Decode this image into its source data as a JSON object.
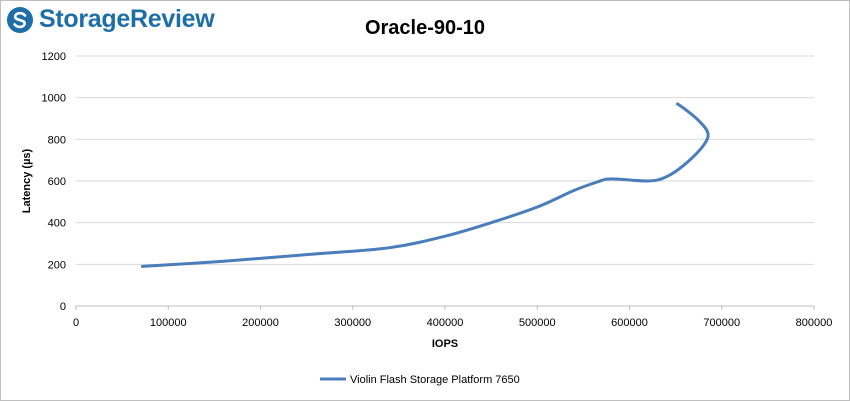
{
  "brand": {
    "name": "StorageReview",
    "color": "#1e6fa8"
  },
  "chart_data": {
    "type": "line",
    "title": "Oracle-90-10",
    "xlabel": "IOPS",
    "ylabel": "Latency (µs)",
    "xlim": [
      0,
      800000
    ],
    "ylim": [
      0,
      1200
    ],
    "xticks": [
      0,
      100000,
      200000,
      300000,
      400000,
      500000,
      600000,
      700000,
      800000
    ],
    "yticks": [
      0,
      200,
      400,
      600,
      800,
      1000,
      1200
    ],
    "grid": true,
    "legend_position": "bottom",
    "series": [
      {
        "name": "Violin Flash Storage Platform 7650",
        "color": "#4a7ebb",
        "points": [
          [
            72000,
            190
          ],
          [
            160000,
            215
          ],
          [
            260000,
            250
          ],
          [
            340000,
            280
          ],
          [
            400000,
            335
          ],
          [
            450000,
            400
          ],
          [
            500000,
            475
          ],
          [
            540000,
            555
          ],
          [
            565000,
            595
          ],
          [
            580000,
            610
          ],
          [
            620000,
            600
          ],
          [
            640000,
            620
          ],
          [
            660000,
            680
          ],
          [
            680000,
            770
          ],
          [
            685000,
            830
          ],
          [
            675000,
            890
          ],
          [
            660000,
            945
          ],
          [
            652000,
            970
          ]
        ]
      }
    ]
  }
}
